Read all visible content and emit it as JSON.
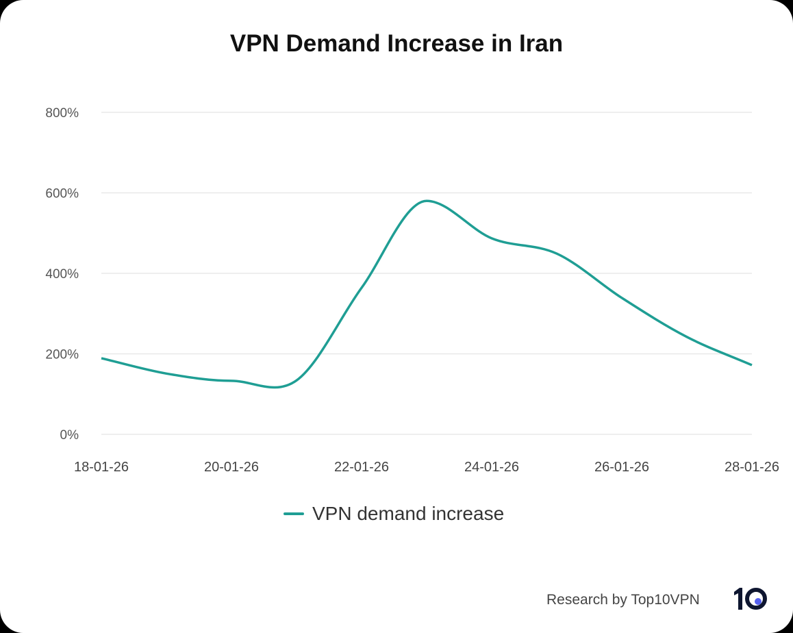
{
  "chart_data": {
    "type": "line",
    "title": "VPN Demand Increase in Iran",
    "x": [
      "18-01-26",
      "19-01-26",
      "20-01-26",
      "21-01-26",
      "22-01-26",
      "23-01-26",
      "24-01-26",
      "25-01-26",
      "26-01-26",
      "27-01-26",
      "28-01-26"
    ],
    "x_tick_labels": [
      "18-01-26",
      "20-01-26",
      "22-01-26",
      "24-01-26",
      "26-01-26",
      "28-01-26"
    ],
    "series": [
      {
        "name": "VPN demand increase",
        "color": "#1f9e94",
        "values": [
          189,
          151,
          133,
          134,
          364,
          580,
          487,
          449,
          339,
          242,
          172
        ]
      }
    ],
    "ylim": [
      0,
      800
    ],
    "y_ticks": [
      0,
      200,
      400,
      600,
      800
    ],
    "y_tick_labels": [
      "0%",
      "200%",
      "400%",
      "600%",
      "800%"
    ],
    "grid": true,
    "legend": "bottom"
  },
  "footer": {
    "credit": "Research by Top10VPN",
    "logo_text": "10",
    "logo_dot_color": "#5560f0"
  }
}
